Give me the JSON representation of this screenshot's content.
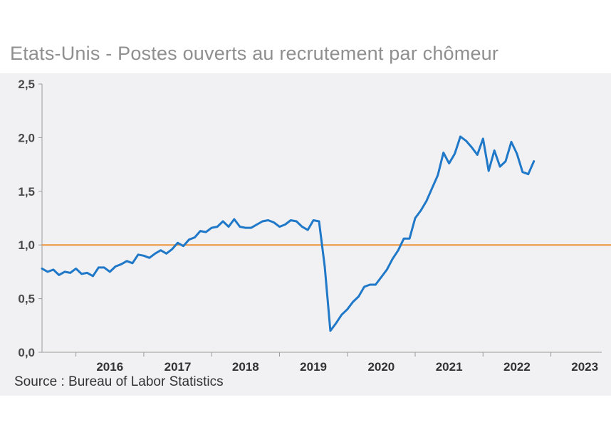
{
  "title": "Etats-Unis - Postes ouverts au recrutement par chômeur",
  "source": "Source : Bureau of Labor Statistics",
  "colors": {
    "series": "#1f78c8",
    "reference": "#f0923a",
    "axis": "#9a9a9a",
    "panel": "#f1f1f3"
  },
  "chart_data": {
    "type": "line",
    "xlabel": "",
    "ylabel": "",
    "ylim": [
      0,
      2.5
    ],
    "xlim": [
      "2015-07",
      "2023-10"
    ],
    "grid": false,
    "y_ticks": [
      "0,0",
      "0,5",
      "1,0",
      "1,5",
      "2,0",
      "2,5"
    ],
    "x_ticks": [
      "2016",
      "2017",
      "2018",
      "2019",
      "2020",
      "2021",
      "2022",
      "2023"
    ],
    "reference_line": {
      "y": 1.0
    },
    "series": [
      {
        "points": [
          [
            "2015-07",
            0.78
          ],
          [
            "2015-08",
            0.75
          ],
          [
            "2015-09",
            0.77
          ],
          [
            "2015-10",
            0.72
          ],
          [
            "2015-11",
            0.75
          ],
          [
            "2015-12",
            0.74
          ],
          [
            "2016-01",
            0.78
          ],
          [
            "2016-02",
            0.73
          ],
          [
            "2016-03",
            0.74
          ],
          [
            "2016-04",
            0.71
          ],
          [
            "2016-05",
            0.79
          ],
          [
            "2016-06",
            0.79
          ],
          [
            "2016-07",
            0.75
          ],
          [
            "2016-08",
            0.8
          ],
          [
            "2016-09",
            0.82
          ],
          [
            "2016-10",
            0.85
          ],
          [
            "2016-11",
            0.83
          ],
          [
            "2016-12",
            0.91
          ],
          [
            "2017-01",
            0.9
          ],
          [
            "2017-02",
            0.88
          ],
          [
            "2017-03",
            0.92
          ],
          [
            "2017-04",
            0.95
          ],
          [
            "2017-05",
            0.92
          ],
          [
            "2017-06",
            0.96
          ],
          [
            "2017-07",
            1.02
          ],
          [
            "2017-08",
            0.99
          ],
          [
            "2017-09",
            1.05
          ],
          [
            "2017-10",
            1.07
          ],
          [
            "2017-11",
            1.13
          ],
          [
            "2017-12",
            1.12
          ],
          [
            "2018-01",
            1.16
          ],
          [
            "2018-02",
            1.17
          ],
          [
            "2018-03",
            1.22
          ],
          [
            "2018-04",
            1.17
          ],
          [
            "2018-05",
            1.24
          ],
          [
            "2018-06",
            1.17
          ],
          [
            "2018-07",
            1.16
          ],
          [
            "2018-08",
            1.16
          ],
          [
            "2018-09",
            1.19
          ],
          [
            "2018-10",
            1.22
          ],
          [
            "2018-11",
            1.23
          ],
          [
            "2018-12",
            1.21
          ],
          [
            "2019-01",
            1.17
          ],
          [
            "2019-02",
            1.19
          ],
          [
            "2019-03",
            1.23
          ],
          [
            "2019-04",
            1.22
          ],
          [
            "2019-05",
            1.17
          ],
          [
            "2019-06",
            1.14
          ],
          [
            "2019-07",
            1.23
          ],
          [
            "2019-08",
            1.22
          ],
          [
            "2019-09",
            0.8
          ],
          [
            "2019-10",
            0.2
          ],
          [
            "2019-11",
            0.27
          ],
          [
            "2019-12",
            0.35
          ],
          [
            "2020-01",
            0.4
          ],
          [
            "2020-02",
            0.47
          ],
          [
            "2020-03",
            0.52
          ],
          [
            "2020-04",
            0.61
          ],
          [
            "2020-05",
            0.63
          ],
          [
            "2020-06",
            0.63
          ],
          [
            "2020-07",
            0.7
          ],
          [
            "2020-08",
            0.77
          ],
          [
            "2020-09",
            0.87
          ],
          [
            "2020-10",
            0.95
          ],
          [
            "2020-11",
            1.06
          ],
          [
            "2020-12",
            1.06
          ],
          [
            "2021-01",
            1.25
          ],
          [
            "2021-02",
            1.32
          ],
          [
            "2021-03",
            1.41
          ],
          [
            "2021-04",
            1.53
          ],
          [
            "2021-05",
            1.65
          ],
          [
            "2021-06",
            1.86
          ],
          [
            "2021-07",
            1.76
          ],
          [
            "2021-08",
            1.85
          ],
          [
            "2021-09",
            2.01
          ],
          [
            "2021-10",
            1.97
          ],
          [
            "2021-11",
            1.91
          ],
          [
            "2021-12",
            1.84
          ],
          [
            "2022-01",
            1.99
          ],
          [
            "2022-02",
            1.69
          ],
          [
            "2022-03",
            1.88
          ],
          [
            "2022-04",
            1.73
          ],
          [
            "2022-05",
            1.78
          ],
          [
            "2022-06",
            1.96
          ],
          [
            "2022-07",
            1.85
          ],
          [
            "2022-08",
            1.68
          ],
          [
            "2022-09",
            1.66
          ],
          [
            "2022-10",
            1.78
          ]
        ]
      }
    ]
  }
}
